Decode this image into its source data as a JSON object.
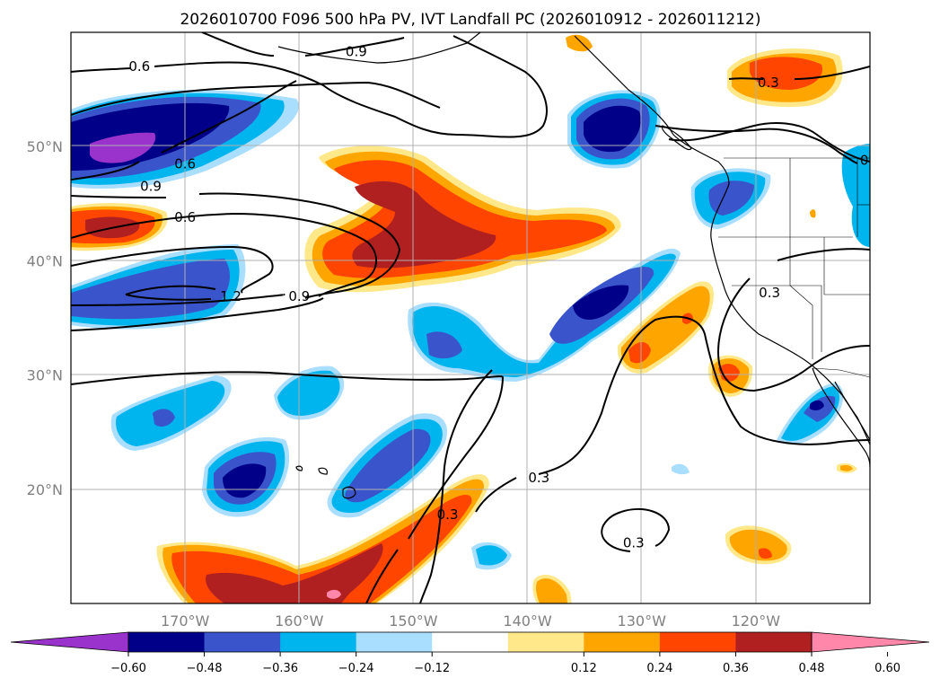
{
  "map": {
    "title": "2026010700 F096 500 hPa PV, IVT Landfall PC (2026010912 - 2026011212)",
    "projection": "PlateCarree",
    "extent": {
      "lon_min": -180,
      "lon_max": -110,
      "lat_min": 10,
      "lat_max": 60
    },
    "gridlines": true,
    "lat_labels": [
      "50°N",
      "40°N",
      "30°N",
      "20°N"
    ],
    "lat_values": [
      50,
      40,
      30,
      20
    ],
    "lon_labels": [
      "170°W",
      "160°W",
      "150°W",
      "140°W",
      "130°W",
      "120°W"
    ],
    "lon_values": [
      -170,
      -160,
      -150,
      -140,
      -130,
      -120
    ],
    "contour_labels": [
      {
        "text": "0.6",
        "lon": -174,
        "lat": 57
      },
      {
        "text": "0.9",
        "lon": -155,
        "lat": 58.3
      },
      {
        "text": "0.3",
        "lon": -118.9,
        "lat": 55.6
      },
      {
        "text": "0.9",
        "lon": -173,
        "lat": 46.5
      },
      {
        "text": "0.6",
        "lon": -170,
        "lat": 48.5
      },
      {
        "text": "0.6",
        "lon": -170,
        "lat": 43.8
      },
      {
        "text": "0.3",
        "lon": -118.8,
        "lat": 37.2
      },
      {
        "text": "1.2",
        "lon": -166,
        "lat": 36.9
      },
      {
        "text": "0.9",
        "lon": -160,
        "lat": 36.9
      },
      {
        "text": "0.3",
        "lon": -139,
        "lat": 21
      },
      {
        "text": "0.3",
        "lon": -147,
        "lat": 17.8
      },
      {
        "text": "0.3",
        "lon": -130.7,
        "lat": 15.3
      },
      {
        "text": "0",
        "lon": -110.5,
        "lat": 48.8
      }
    ]
  },
  "colorbar": {
    "ticks": [
      "−0.60",
      "−0.48",
      "−0.36",
      "−0.24",
      "−0.12",
      "0.12",
      "0.24",
      "0.36",
      "0.48",
      "0.60"
    ],
    "colors": [
      "#9933cc",
      "#000088",
      "#3a55cc",
      "#00b4ee",
      "#aadeff",
      "#ffffff",
      "#ffe88a",
      "#ffa500",
      "#ff4500",
      "#b02020",
      "#ff88aa",
      "#ff88aa"
    ]
  },
  "fill_colors": {
    "neg_strong": "#000088",
    "neg_mid": "#3a55cc",
    "neg_weak": "#00b4ee",
    "neg_faint": "#aadeff",
    "neg_extreme": "#9933cc",
    "pos_faint": "#ffe88a",
    "pos_weak": "#ffa500",
    "pos_mid": "#ff4500",
    "pos_strong": "#b02020",
    "pos_extreme": "#ff88aa"
  }
}
